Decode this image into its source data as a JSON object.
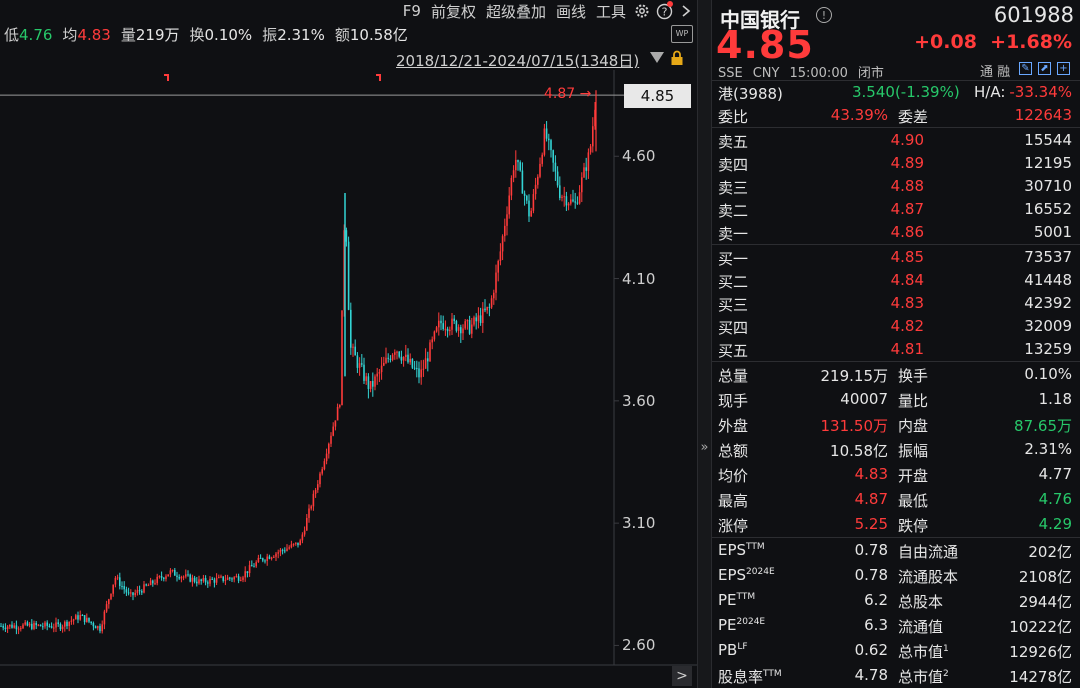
{
  "toolbar": {
    "items": [
      "F9",
      "前复权",
      "超级叠加",
      "画线",
      "工具"
    ],
    "icons": [
      "gear-icon",
      "help-icon",
      "chevron-right-icon"
    ]
  },
  "stats": [
    {
      "k": "低",
      "v": "4.76",
      "c": "green"
    },
    {
      "k": "均",
      "v": "4.83",
      "c": "red"
    },
    {
      "k": "量",
      "v": "219万",
      "c": "white"
    },
    {
      "k": "换",
      "v": "0.10%",
      "c": "white"
    },
    {
      "k": "振",
      "v": "2.31%",
      "c": "white"
    },
    {
      "k": "额",
      "v": "10.58亿",
      "c": "white"
    }
  ],
  "range_text": "2018/12/21-2024/07/15(1348日)",
  "wp_label": "WP",
  "chart": {
    "current_price": "4.85",
    "high_marker": "4.87",
    "y_ticks": [
      "4.60",
      "4.10",
      "3.60",
      "3.10",
      "2.60"
    ],
    "y_tick_values": [
      4.6,
      4.1,
      3.6,
      3.1,
      2.6
    ],
    "scroll_label": ">",
    "colors": {
      "up": "#ff3b3b",
      "down": "#33d4d4",
      "bg": "#0f1013"
    }
  },
  "chart_data": {
    "type": "candlestick",
    "ylim": [
      2.52,
      4.92
    ],
    "y_ticks": [
      4.6,
      4.1,
      3.6,
      3.1,
      2.6
    ],
    "last_close": 4.85,
    "period_high": 4.87,
    "keypoints": [
      [
        0,
        2.68
      ],
      [
        60,
        2.68
      ],
      [
        80,
        2.72
      ],
      [
        100,
        2.67
      ],
      [
        115,
        2.88
      ],
      [
        130,
        2.8
      ],
      [
        170,
        2.9
      ],
      [
        200,
        2.86
      ],
      [
        240,
        2.88
      ],
      [
        260,
        2.95
      ],
      [
        300,
        3.02
      ],
      [
        320,
        3.3
      ],
      [
        340,
        3.6
      ],
      [
        345,
        4.45
      ],
      [
        350,
        3.82
      ],
      [
        370,
        3.65
      ],
      [
        395,
        3.82
      ],
      [
        420,
        3.7
      ],
      [
        440,
        3.92
      ],
      [
        470,
        3.9
      ],
      [
        490,
        3.98
      ],
      [
        500,
        4.2
      ],
      [
        515,
        4.6
      ],
      [
        530,
        4.35
      ],
      [
        545,
        4.7
      ],
      [
        560,
        4.45
      ],
      [
        575,
        4.4
      ],
      [
        590,
        4.62
      ],
      [
        596,
        4.85
      ]
    ]
  },
  "panel": {
    "name": "中国银行",
    "info": "!",
    "code": "601988",
    "price": "4.85",
    "change": "+0.08",
    "change_pct": "+1.68%",
    "meta": [
      "SSE",
      "CNY",
      "15:00:00",
      "闭市"
    ],
    "tong_rong": "通 融",
    "hk": {
      "label": "港(3988)",
      "price": "3.540(-1.39%)",
      "ha_label": "H/A:",
      "ha": "-33.34%"
    },
    "weibi": {
      "label": "委比",
      "value": "43.39%",
      "label2": "委差",
      "value2": "122643"
    },
    "asks": [
      {
        "label": "卖五",
        "price": "4.90",
        "vol": "15544"
      },
      {
        "label": "卖四",
        "price": "4.89",
        "vol": "12195"
      },
      {
        "label": "卖三",
        "price": "4.88",
        "vol": "30710"
      },
      {
        "label": "卖二",
        "price": "4.87",
        "vol": "16552"
      },
      {
        "label": "卖一",
        "price": "4.86",
        "vol": "5001"
      }
    ],
    "bids": [
      {
        "label": "买一",
        "price": "4.85",
        "vol": "73537"
      },
      {
        "label": "买二",
        "price": "4.84",
        "vol": "41448"
      },
      {
        "label": "买三",
        "price": "4.83",
        "vol": "42392"
      },
      {
        "label": "买四",
        "price": "4.82",
        "vol": "32009"
      },
      {
        "label": "买五",
        "price": "4.81",
        "vol": "13259"
      }
    ],
    "stats": [
      {
        "l1": "总量",
        "v1": "219.15万",
        "c1": "white",
        "l2": "换手",
        "v2": "0.10%",
        "c2": "white"
      },
      {
        "l1": "现手",
        "v1": "40007",
        "c1": "white",
        "l2": "量比",
        "v2": "1.18",
        "c2": "white"
      },
      {
        "l1": "外盘",
        "v1": "131.50万",
        "c1": "red",
        "l2": "内盘",
        "v2": "87.65万",
        "c2": "green"
      },
      {
        "l1": "总额",
        "v1": "10.58亿",
        "c1": "white",
        "l2": "振幅",
        "v2": "2.31%",
        "c2": "white"
      },
      {
        "l1": "均价",
        "v1": "4.83",
        "c1": "red",
        "l2": "开盘",
        "v2": "4.77",
        "c2": "white"
      },
      {
        "l1": "最高",
        "v1": "4.87",
        "c1": "red",
        "l2": "最低",
        "v2": "4.76",
        "c2": "green"
      },
      {
        "l1": "涨停",
        "v1": "5.25",
        "c1": "red",
        "l2": "跌停",
        "v2": "4.29",
        "c2": "green"
      }
    ],
    "fin": [
      {
        "l1": "EPS",
        "s1": "TTM",
        "v1": "0.78",
        "l2": "自由流通",
        "s2": "",
        "v2": "202亿"
      },
      {
        "l1": "EPS",
        "s1": "2024E",
        "v1": "0.78",
        "l2": "流通股本",
        "s2": "",
        "v2": "2108亿"
      },
      {
        "l1": "PE",
        "s1": "TTM",
        "v1": "6.2",
        "l2": "总股本",
        "s2": "",
        "v2": "2944亿"
      },
      {
        "l1": "PE",
        "s1": "2024E",
        "v1": "6.3",
        "l2": "流通值",
        "s2": "",
        "v2": "10222亿"
      },
      {
        "l1": "PB",
        "s1": "LF",
        "v1": "0.62",
        "l2": "总市值",
        "s2": "1",
        "v2": "12926亿"
      },
      {
        "l1": "股息率",
        "s1": "TTM",
        "v1": "4.78",
        "l2": "总市值",
        "s2": "2",
        "v2": "14278亿"
      }
    ]
  }
}
